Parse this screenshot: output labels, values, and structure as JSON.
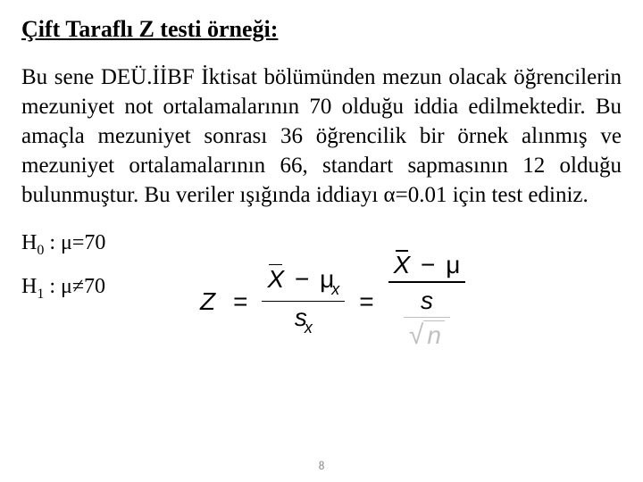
{
  "title": "Çift Taraflı Z testi örneği:",
  "body": "Bu sene DEÜ.İİBF İktisat bölümünden mezun olacak öğrencilerin mezuniyet not ortalamalarının 70 olduğu iddia edilmektedir. Bu amaçla mezuniyet sonrası 36 öğrencilik bir örnek alınmış ve mezuniyet ortalamalarının 66, standart sapmasının 12 olduğu bulunmuştur. Bu veriler ışığında iddiayı α=0.01 için test ediniz.",
  "hypotheses": {
    "h0_label": "H",
    "h0_sub": "0",
    "h0_text": " : μ=70",
    "h1_label": "H",
    "h1_sub": "1",
    "h1_text": " : μ≠70"
  },
  "formula": {
    "Z": "Z",
    "eq": "=",
    "X": "X",
    "minus": "−",
    "mu": "μ",
    "x_sub": "x",
    "s": "s",
    "n": "n",
    "xbar_sub": "x"
  },
  "page_number": "8",
  "colors": {
    "text": "#000000",
    "background": "#ffffff",
    "faded": "#bfbfbf",
    "pagenum": "#898989"
  }
}
